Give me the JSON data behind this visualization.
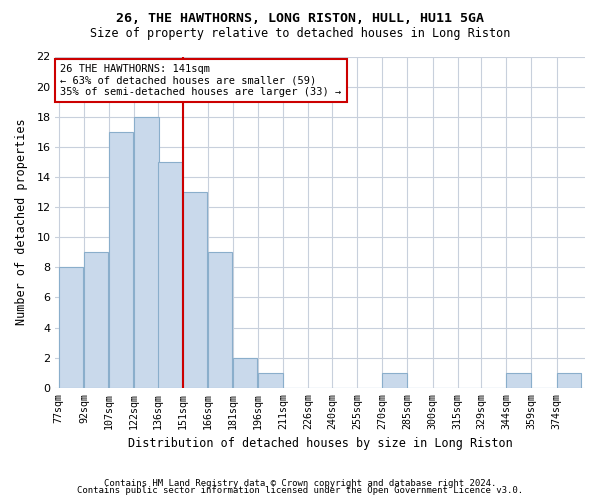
{
  "title1": "26, THE HAWTHORNS, LONG RISTON, HULL, HU11 5GA",
  "title2": "Size of property relative to detached houses in Long Riston",
  "xlabel": "Distribution of detached houses by size in Long Riston",
  "ylabel": "Number of detached properties",
  "bins": [
    77,
    92,
    107,
    122,
    136,
    151,
    166,
    181,
    196,
    211,
    226,
    240,
    255,
    270,
    285,
    300,
    315,
    329,
    344,
    359,
    374
  ],
  "bin_labels": [
    "77sqm",
    "92sqm",
    "107sqm",
    "122sqm",
    "136sqm",
    "151sqm",
    "166sqm",
    "181sqm",
    "196sqm",
    "211sqm",
    "226sqm",
    "240sqm",
    "255sqm",
    "270sqm",
    "285sqm",
    "300sqm",
    "315sqm",
    "329sqm",
    "344sqm",
    "359sqm",
    "374sqm"
  ],
  "values": [
    8,
    9,
    17,
    18,
    15,
    13,
    9,
    2,
    1,
    0,
    0,
    0,
    0,
    1,
    0,
    0,
    0,
    0,
    1,
    0,
    1
  ],
  "bar_facecolor": "#c9d9eb",
  "bar_edgecolor": "#8aaecb",
  "property_line_color": "#cc0000",
  "annotation_text": "26 THE HAWTHORNS: 141sqm\n← 63% of detached houses are smaller (59)\n35% of semi-detached houses are larger (33) →",
  "annotation_box_edgecolor": "#cc0000",
  "annotation_box_facecolor": "#ffffff",
  "ylim": [
    0,
    22
  ],
  "yticks": [
    0,
    2,
    4,
    6,
    8,
    10,
    12,
    14,
    16,
    18,
    20,
    22
  ],
  "grid_color": "#c8d0dc",
  "footer1": "Contains HM Land Registry data © Crown copyright and database right 2024.",
  "footer2": "Contains public sector information licensed under the Open Government Licence v3.0.",
  "background_color": "#ffffff",
  "axes_background_color": "#ffffff"
}
